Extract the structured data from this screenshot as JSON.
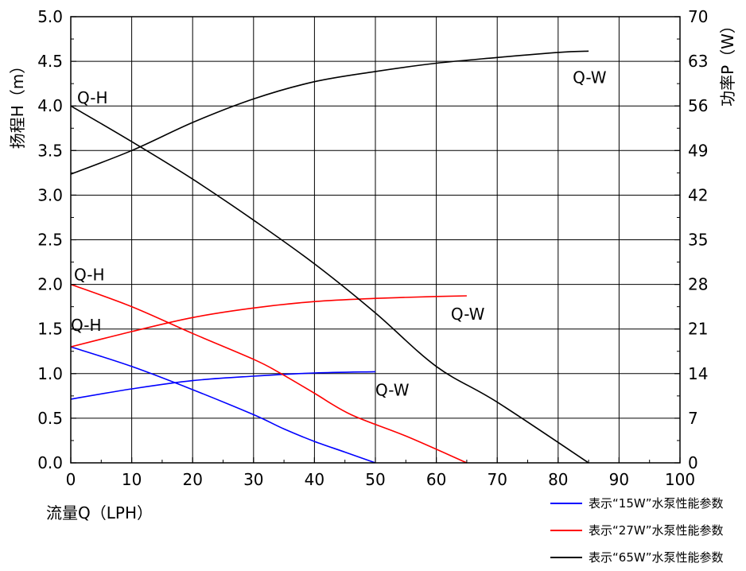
{
  "chart_data": {
    "type": "line",
    "xlabel": "流量Q（LPH）",
    "ylabel_left": "扬程H（m）",
    "ylabel_right": "功率P（W）",
    "xlim": [
      0,
      100
    ],
    "ylim_left": [
      0,
      5.0
    ],
    "ylim_right": [
      0,
      70
    ],
    "x_ticks": [
      "0",
      "10",
      "20",
      "30",
      "40",
      "50",
      "60",
      "70",
      "80",
      "90",
      "100"
    ],
    "y_left_ticks": [
      "0.0",
      "0.5",
      "1.0",
      "1.5",
      "2.0",
      "2.5",
      "3.0",
      "3.5",
      "4.0",
      "4.5",
      "5.0"
    ],
    "y_right_ticks": [
      "0",
      "7",
      "14",
      "21",
      "28",
      "35",
      "42",
      "49",
      "56",
      "63",
      "70"
    ],
    "grid": true,
    "legend_position": "bottom-right",
    "legend": [
      {
        "label": "表示“15W”水泵性能参数",
        "color": "#0000ff"
      },
      {
        "label": "表示“27W”水泵性能参数",
        "color": "#ff0000"
      },
      {
        "label": "表示“65W”水泵性能参数",
        "color": "#000000"
      }
    ],
    "series": [
      {
        "name": "Q-H",
        "pump": "15W",
        "axis": "left",
        "color": "#0000ff",
        "label_text": "Q-H",
        "points": [
          [
            0,
            1.3
          ],
          [
            10,
            1.08
          ],
          [
            20,
            0.82
          ],
          [
            30,
            0.54
          ],
          [
            35,
            0.38
          ],
          [
            40,
            0.24
          ],
          [
            45,
            0.12
          ],
          [
            50,
            0.0
          ]
        ]
      },
      {
        "name": "Q-W",
        "pump": "15W",
        "axis": "right",
        "color": "#0000ff",
        "label_text": "Q-W",
        "points": [
          [
            0,
            10.0
          ],
          [
            10,
            11.6
          ],
          [
            20,
            12.9
          ],
          [
            30,
            13.6
          ],
          [
            40,
            14.1
          ],
          [
            50,
            14.3
          ]
        ]
      },
      {
        "name": "Q-H",
        "pump": "27W",
        "axis": "left",
        "color": "#ff0000",
        "label_text": "Q-H",
        "points": [
          [
            0,
            2.0
          ],
          [
            10,
            1.75
          ],
          [
            20,
            1.45
          ],
          [
            30,
            1.16
          ],
          [
            34,
            1.02
          ],
          [
            40,
            0.78
          ],
          [
            46,
            0.54
          ],
          [
            55,
            0.3
          ],
          [
            65,
            0.0
          ]
        ]
      },
      {
        "name": "Q-W",
        "pump": "27W",
        "axis": "right",
        "color": "#ff0000",
        "label_text": "Q-W",
        "points": [
          [
            0,
            18.2
          ],
          [
            10,
            20.6
          ],
          [
            20,
            22.8
          ],
          [
            30,
            24.3
          ],
          [
            40,
            25.3
          ],
          [
            50,
            25.8
          ],
          [
            60,
            26.1
          ],
          [
            65,
            26.2
          ]
        ]
      },
      {
        "name": "Q-H",
        "pump": "65W",
        "axis": "left",
        "color": "#000000",
        "label_text": "Q-H",
        "points": [
          [
            0,
            4.0
          ],
          [
            10,
            3.6
          ],
          [
            20,
            3.18
          ],
          [
            30,
            2.72
          ],
          [
            40,
            2.23
          ],
          [
            50,
            1.68
          ],
          [
            60,
            1.08
          ],
          [
            70,
            0.68
          ],
          [
            85,
            0.0
          ]
        ]
      },
      {
        "name": "Q-W",
        "pump": "65W",
        "axis": "right",
        "color": "#000000",
        "label_text": "Q-W",
        "points": [
          [
            0,
            45.3
          ],
          [
            10,
            49.0
          ],
          [
            20,
            53.4
          ],
          [
            30,
            57.1
          ],
          [
            40,
            59.8
          ],
          [
            50,
            61.4
          ],
          [
            60,
            62.7
          ],
          [
            70,
            63.6
          ],
          [
            80,
            64.4
          ],
          [
            85,
            64.6
          ]
        ]
      }
    ]
  }
}
